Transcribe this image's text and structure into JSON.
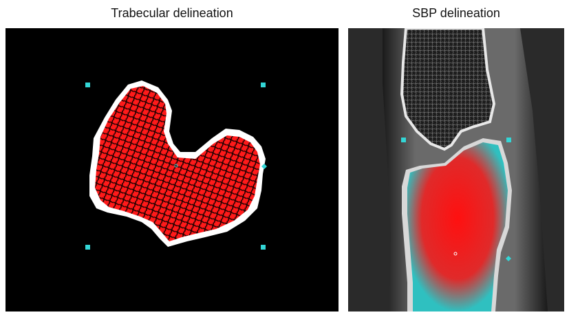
{
  "panels": [
    {
      "title": "Trabecular delineation"
    },
    {
      "title": "SBP delineation"
    }
  ],
  "colors": {
    "background": "#000000",
    "bone": "#ffffff",
    "trabecular": "#ff1a1a",
    "marker": "#33d6d6",
    "soft_tissue": "#5a5a5a"
  },
  "icons": [
    "square-marker-icon",
    "diamond-marker-icon"
  ]
}
